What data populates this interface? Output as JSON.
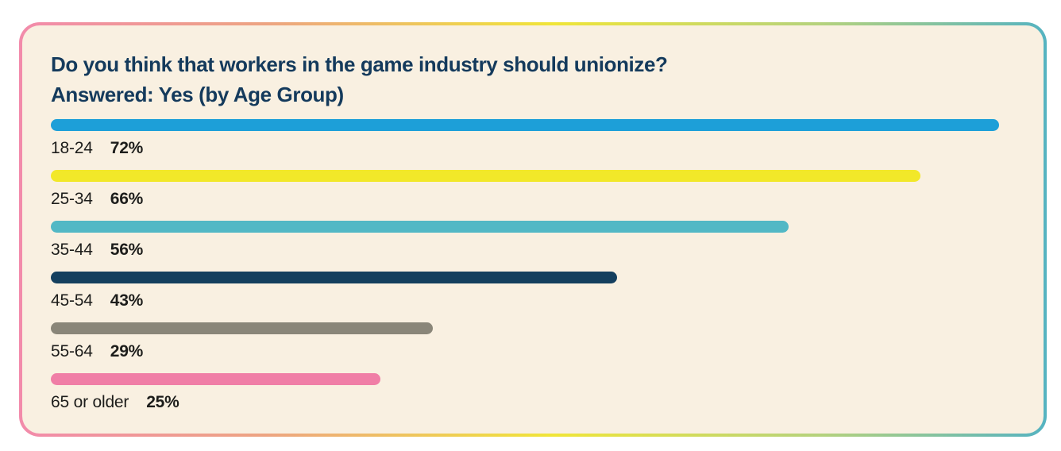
{
  "card": {
    "title_line1": "Do you think that workers in the game industry should unionize?",
    "title_line2": "Answered: Yes (by Age Group)"
  },
  "chart_data": {
    "type": "bar",
    "orientation": "horizontal",
    "title": "Do you think that workers in the game industry should unionize?",
    "subtitle": "Answered: Yes (by Age Group)",
    "categories": [
      "18-24",
      "25-34",
      "35-44",
      "45-54",
      "55-64",
      "65 or older"
    ],
    "values": [
      72,
      66,
      56,
      43,
      29,
      25
    ],
    "unit": "%",
    "value_labels": [
      "72%",
      "66%",
      "56%",
      "43%",
      "29%",
      "25%"
    ],
    "bar_colors": [
      "#1d9fd8",
      "#f2e829",
      "#52b8c5",
      "#143f5e",
      "#8a8679",
      "#f07ea6"
    ],
    "xlim": [
      0,
      100
    ],
    "grid": false,
    "legend": "none",
    "value_label_position": "below-bar-after-category"
  },
  "style": {
    "page_background": "#ffffff",
    "card_background": "#f9f0e1",
    "title_color": "#143a5c",
    "label_color": "#1d1d1b",
    "border_gradient": [
      "#f28bab",
      "#eda482",
      "#f0e538",
      "#b5d27d",
      "#55b3c1"
    ]
  }
}
